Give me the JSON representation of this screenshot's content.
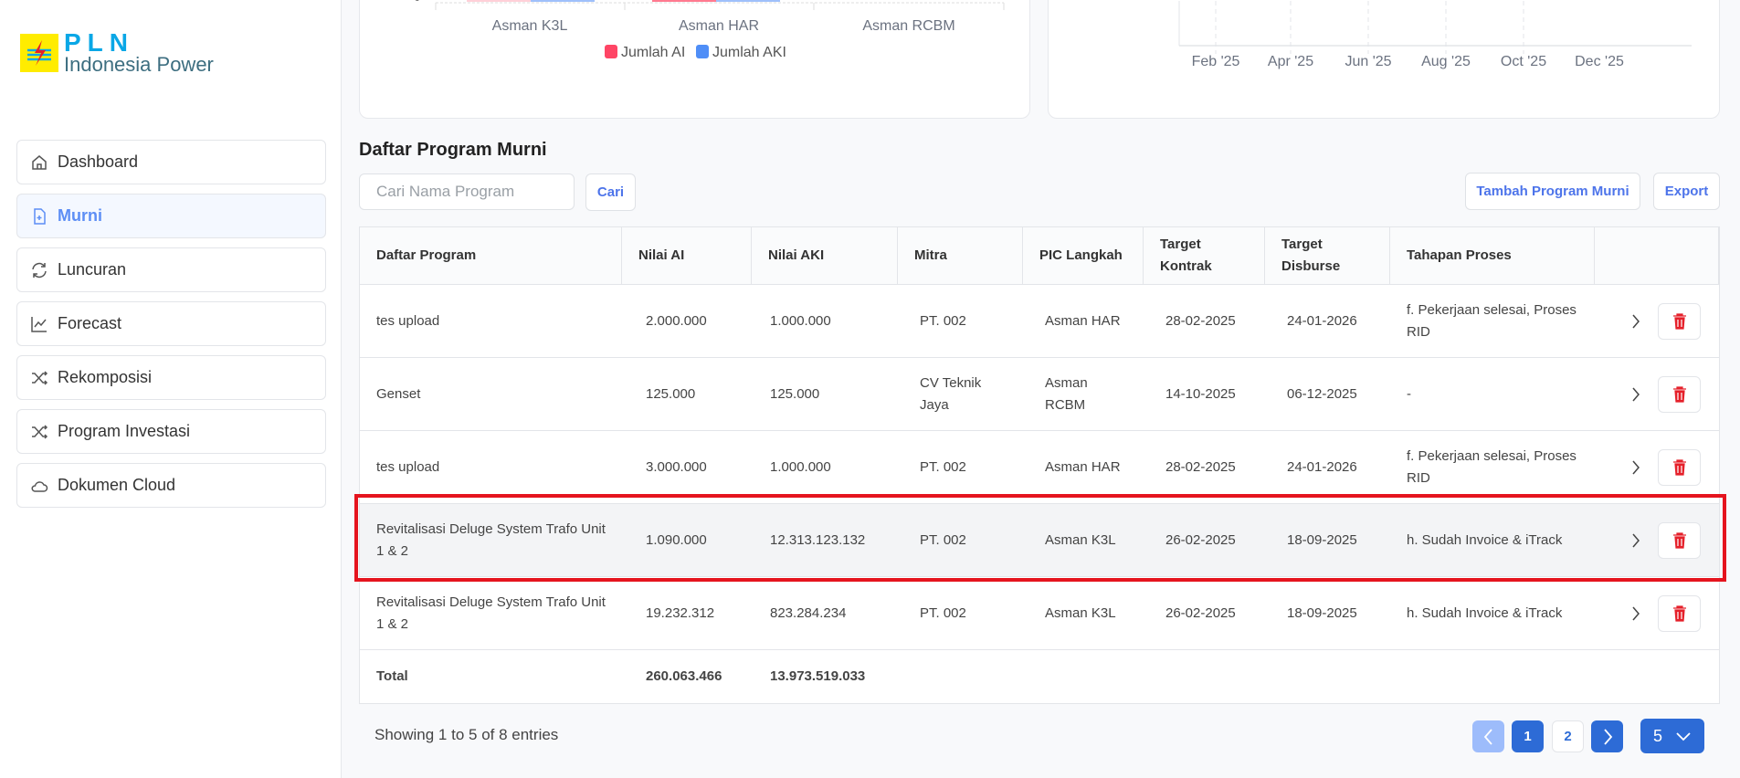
{
  "logo": {
    "line1": "PLN",
    "line2": "Indonesia Power"
  },
  "sidebar": {
    "items": [
      {
        "label": "Dashboard",
        "icon": "home-icon"
      },
      {
        "label": "Murni",
        "icon": "file-plus-icon",
        "active": true
      },
      {
        "label": "Luncuran",
        "icon": "refresh-icon"
      },
      {
        "label": "Forecast",
        "icon": "trend-icon"
      },
      {
        "label": "Rekomposisi",
        "icon": "shuffle-icon"
      },
      {
        "label": "Program Investasi",
        "icon": "shuffle-icon"
      },
      {
        "label": "Dokumen Cloud",
        "icon": "cloud-icon"
      }
    ]
  },
  "chart_data": [
    {
      "type": "bar",
      "categories": [
        "Asman K3L",
        "Asman HAR",
        "Asman RCBM"
      ],
      "y_ticks_visible": [
        "0"
      ],
      "legend": {
        "placement": "bottom",
        "entries": [
          "Jumlah AI",
          "Jumlah AKI"
        ]
      },
      "series": [
        {
          "name": "Jumlah AI",
          "color": "#ff4565"
        },
        {
          "name": "Jumlah AKI",
          "color": "#4f8ef7"
        }
      ]
    },
    {
      "type": "line",
      "x_ticks": [
        "Feb '25",
        "Apr '25",
        "Jun '25",
        "Aug '25",
        "Oct '25",
        "Dec '25"
      ],
      "grid": "vertical dashed"
    }
  ],
  "main": {
    "title": "Daftar Program Murni",
    "search_placeholder": "Cari Nama Program",
    "search_button": "Cari",
    "add_button": "Tambah Program Murni",
    "export_button": "Export"
  },
  "table": {
    "headers": [
      "Daftar Program",
      "Nilai AI",
      "Nilai AKI",
      "Mitra",
      "PIC Langkah",
      "Target Kontrak",
      "Target Disburse",
      "Tahapan Proses"
    ],
    "rows": [
      [
        "tes upload",
        "2.000.000",
        "1.000.000",
        "PT. 002",
        "Asman HAR",
        "28-02-2025",
        "24-01-2026",
        "f. Pekerjaan selesai, Proses RID"
      ],
      [
        "Genset",
        "125.000",
        "125.000",
        "CV Teknik Jaya",
        "Asman RCBM",
        "14-10-2025",
        "06-12-2025",
        "-"
      ],
      [
        "tes upload",
        "3.000.000",
        "1.000.000",
        "PT. 002",
        "Asman HAR",
        "28-02-2025",
        "24-01-2026",
        "f. Pekerjaan selesai, Proses RID"
      ],
      [
        "Revitalisasi Deluge System Trafo Unit 1 & 2",
        "1.090.000",
        "12.313.123.132",
        "PT. 002",
        "Asman K3L",
        "26-02-2025",
        "18-09-2025",
        "h. Sudah Invoice & iTrack"
      ],
      [
        "Revitalisasi Deluge System Trafo Unit 1 & 2",
        "19.232.312",
        "823.284.234",
        "PT. 002",
        "Asman K3L",
        "26-02-2025",
        "18-09-2025",
        "h. Sudah Invoice & iTrack"
      ]
    ],
    "total": {
      "label": "Total",
      "ai": "260.063.466",
      "aki": "13.973.519.033"
    }
  },
  "pagination": {
    "info": "Showing 1 to 5 of 8 entries",
    "pages": [
      "1",
      "2"
    ],
    "current": "1",
    "page_size": "5"
  }
}
